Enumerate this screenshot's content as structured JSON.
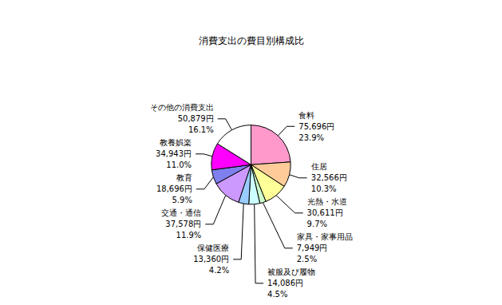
{
  "chart_data": {
    "type": "pie",
    "title": "消費支出の費目別構成比",
    "categories": [
      "食料",
      "住居",
      "光熱・水道",
      "家具・家事用品",
      "被服及び履物",
      "保健医療",
      "交通・通信",
      "教育",
      "教養娯楽",
      "その他の消費支出"
    ],
    "values": [
      23.9,
      10.3,
      9.7,
      2.5,
      4.5,
      4.2,
      11.9,
      5.9,
      11.0,
      16.1
    ],
    "value_labels": [
      "23.9%",
      "10.3%",
      "9.7%",
      "2.5%",
      "4.5%",
      "4.2%",
      "11.9%",
      "5.9%",
      "11.0%",
      "16.1%"
    ],
    "amount_labels": [
      "75,696円",
      "32,566円",
      "30,611円",
      "7,949円",
      "14,086円",
      "13,360円",
      "37,578円",
      "18,696円",
      "34,943円",
      "50,879円"
    ],
    "colors": [
      "#ff99cc",
      "#ffcc99",
      "#ffff99",
      "#ccffcc",
      "#ccffff",
      "#99ccff",
      "#cc99ff",
      "#7f7fee",
      "#ff00ff",
      "#ffffff"
    ],
    "data_labels": true
  }
}
